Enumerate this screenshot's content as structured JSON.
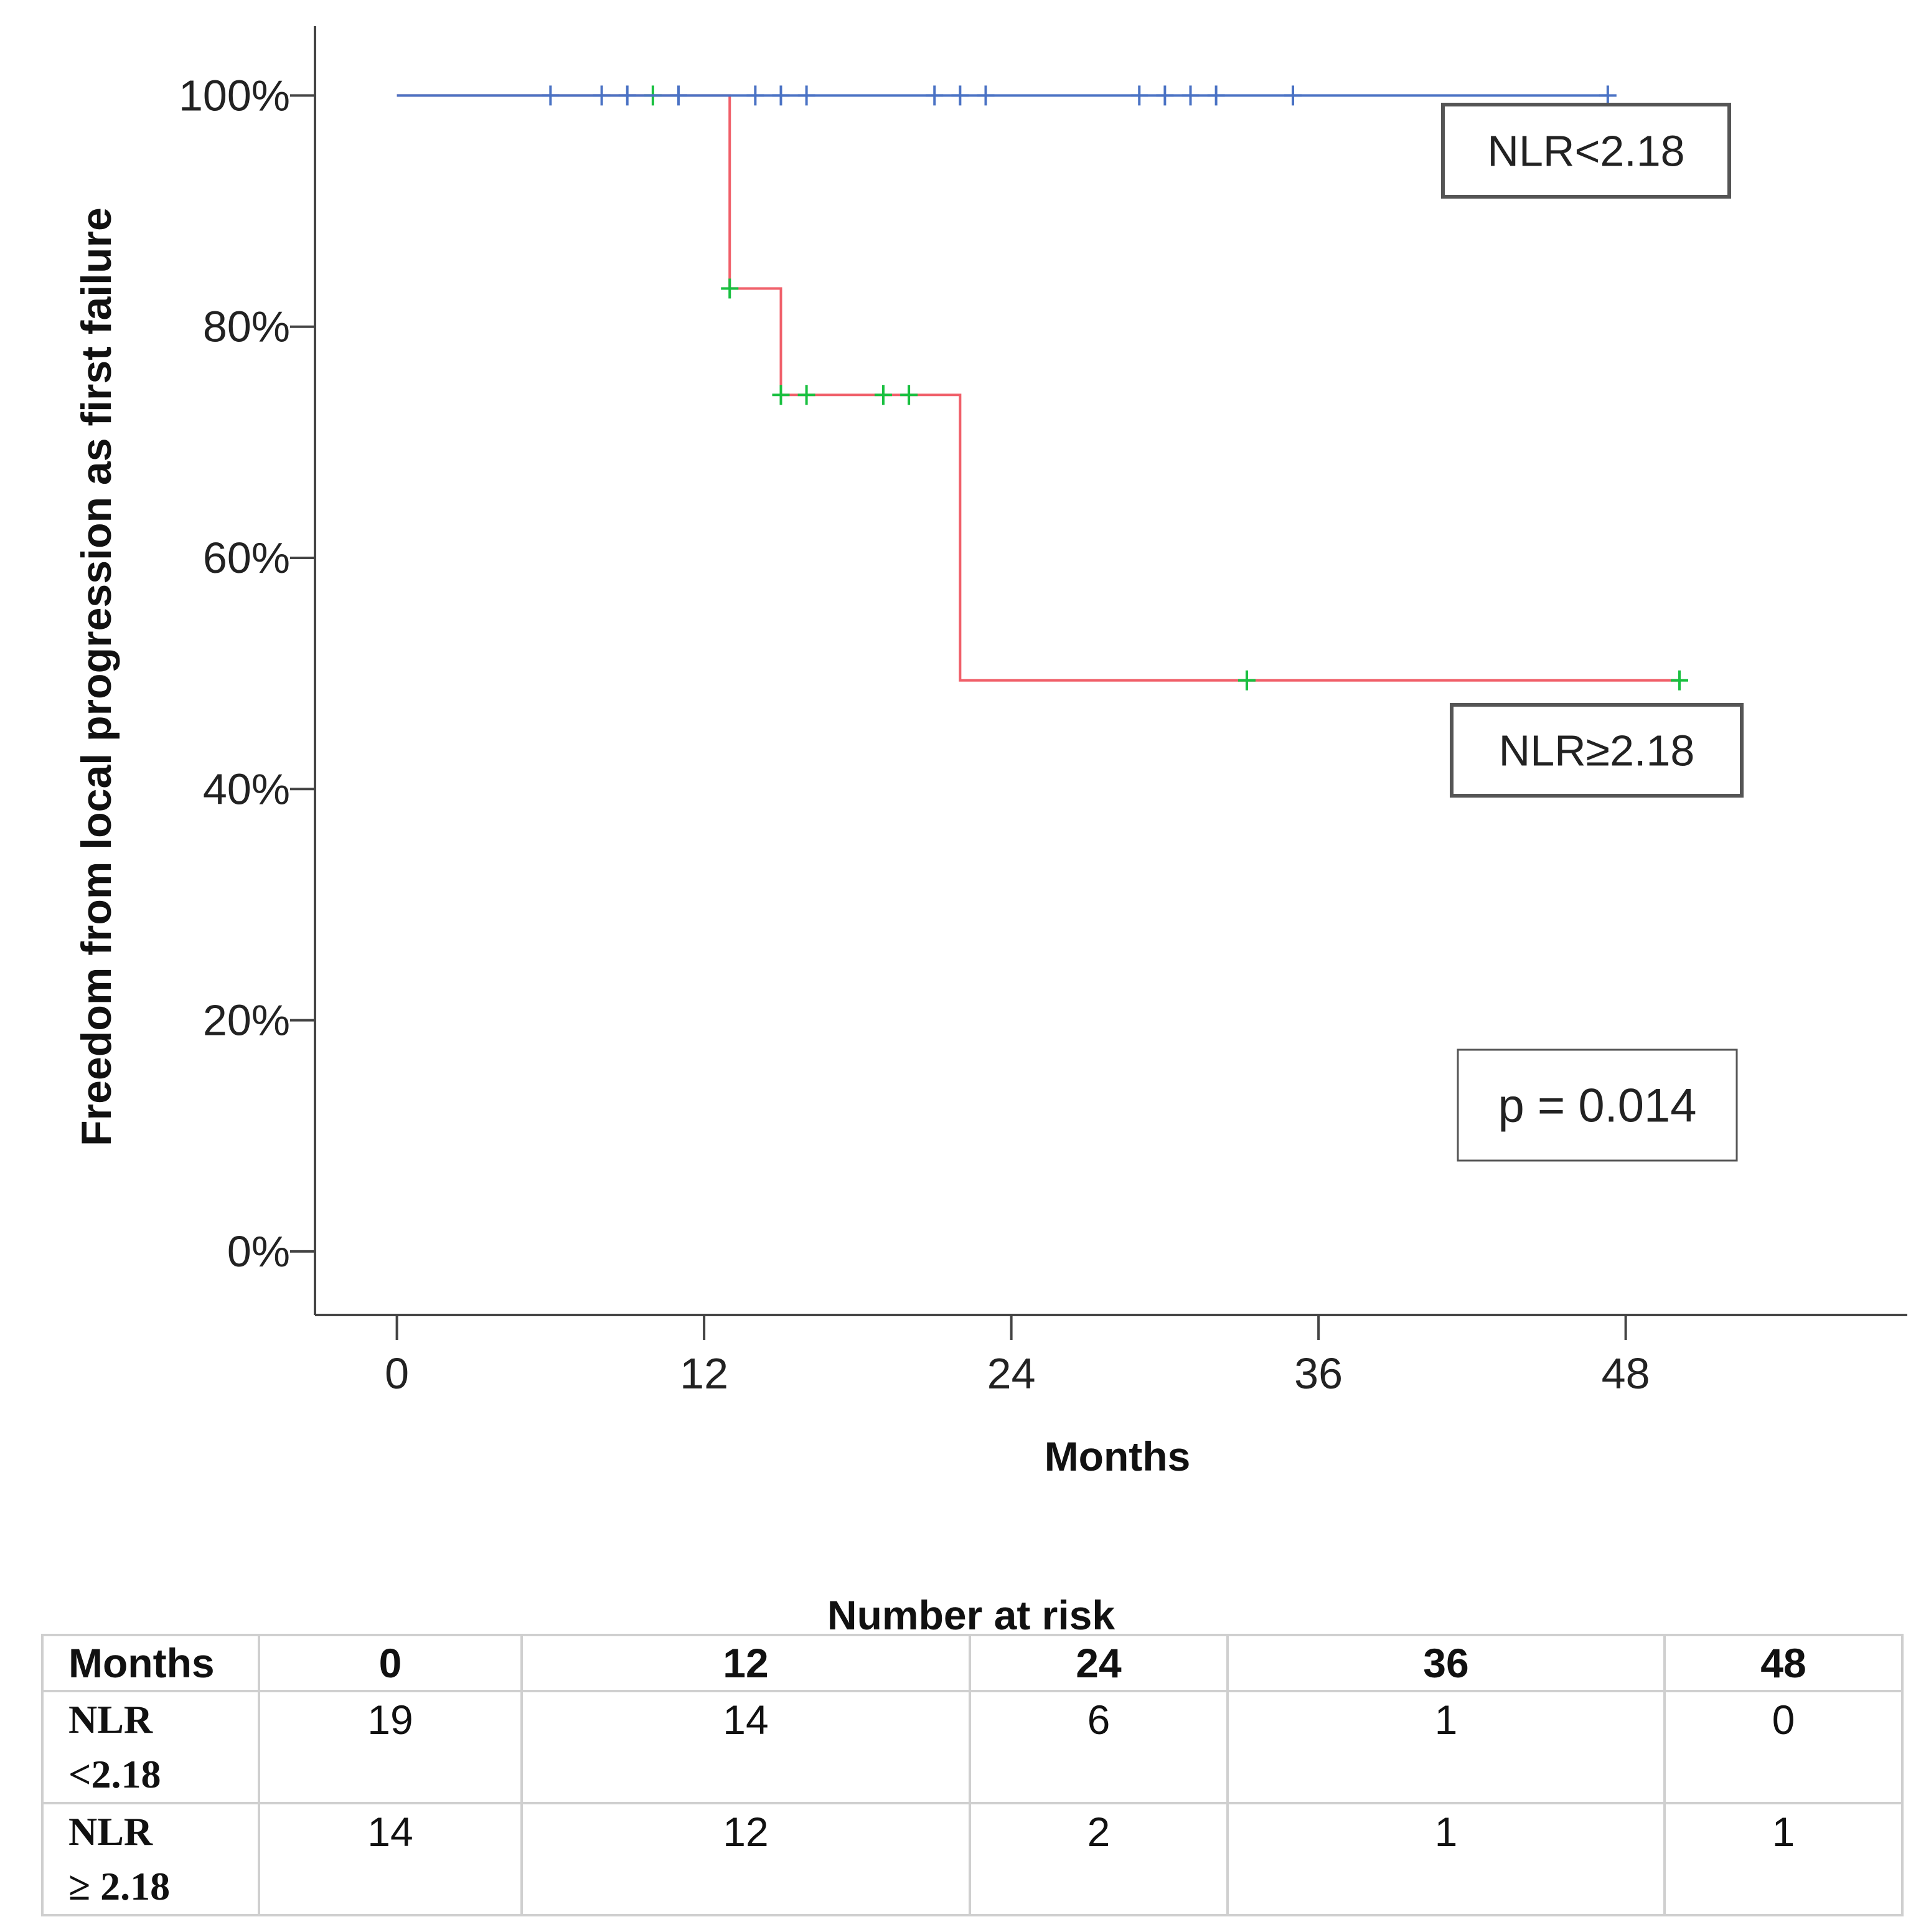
{
  "chart_data": {
    "type": "line",
    "subtype": "kaplan-meier",
    "title": "",
    "xlabel": "Months",
    "ylabel": "Freedom from local progression as first failure",
    "xlim": [
      -3.2,
      59
    ],
    "ylim": [
      -5.5,
      106
    ],
    "x_ticks": [
      0,
      12,
      24,
      36,
      48
    ],
    "y_ticks": [
      0,
      20,
      40,
      60,
      80,
      100
    ],
    "y_tick_labels": [
      "0%",
      "20%",
      "40%",
      "60%",
      "80%",
      "100%"
    ],
    "grid": false,
    "series": [
      {
        "name": "NLR<2.18",
        "color": "#4a72c4",
        "censor_color": "#4a72c4",
        "steps": [
          [
            0,
            100
          ],
          [
            47.3,
            100
          ]
        ],
        "censored": [
          [
            6,
            100
          ],
          [
            8,
            100
          ],
          [
            9,
            100
          ],
          [
            11,
            100
          ],
          [
            14,
            100
          ],
          [
            15,
            100
          ],
          [
            16,
            100
          ],
          [
            21,
            100
          ],
          [
            22,
            100
          ],
          [
            23,
            100
          ],
          [
            29,
            100
          ],
          [
            30,
            100
          ],
          [
            31,
            100
          ],
          [
            32,
            100
          ],
          [
            35,
            100
          ],
          [
            47.3,
            100
          ]
        ]
      },
      {
        "name": "NLR≥2.18",
        "color": "#f0606a",
        "censor_color": "#19c040",
        "steps": [
          [
            0,
            100
          ],
          [
            13,
            100
          ],
          [
            13,
            83.3
          ],
          [
            15,
            83.3
          ],
          [
            15,
            74.1
          ],
          [
            22,
            74.1
          ],
          [
            22,
            49.4
          ],
          [
            50.1,
            49.4
          ]
        ],
        "censored": [
          [
            10,
            100
          ],
          [
            13,
            83.3
          ],
          [
            15,
            74.1
          ],
          [
            16,
            74.1
          ],
          [
            19,
            74.1
          ],
          [
            20,
            74.1
          ],
          [
            33.2,
            49.4
          ],
          [
            50.1,
            49.4
          ]
        ]
      }
    ],
    "annotations": {
      "label_high": "NLR<2.18",
      "label_low": "NLR≥2.18",
      "p_value": "p = 0.014"
    }
  },
  "risk_table": {
    "title": "Number at risk",
    "header": [
      "Months",
      "0",
      "12",
      "24",
      "36",
      "48"
    ],
    "rows": [
      {
        "label_line1": "NLR",
        "label_line2": "<2.18",
        "values": [
          "19",
          "14",
          "6",
          "1",
          "0"
        ]
      },
      {
        "label_line1": "NLR",
        "label_line2": "≥ 2.18",
        "values": [
          "14",
          "12",
          "2",
          "1",
          "1"
        ]
      }
    ]
  }
}
